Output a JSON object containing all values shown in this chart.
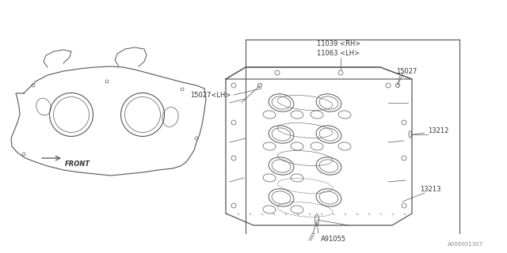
{
  "bg_color": "#ffffff",
  "line_color": "#555555",
  "text_color": "#333333",
  "fig_width": 6.4,
  "fig_height": 3.2,
  "dpi": 100,
  "watermark": "A006001307",
  "labels": {
    "11039_RH": "11039 <RH>",
    "11063_LH": "11063 <LH>",
    "15027": "15027",
    "15027_LH": "15027<LH>",
    "13212": "13212",
    "13213": "13213",
    "A91055": "A91055",
    "FRONT": "FRONT"
  }
}
